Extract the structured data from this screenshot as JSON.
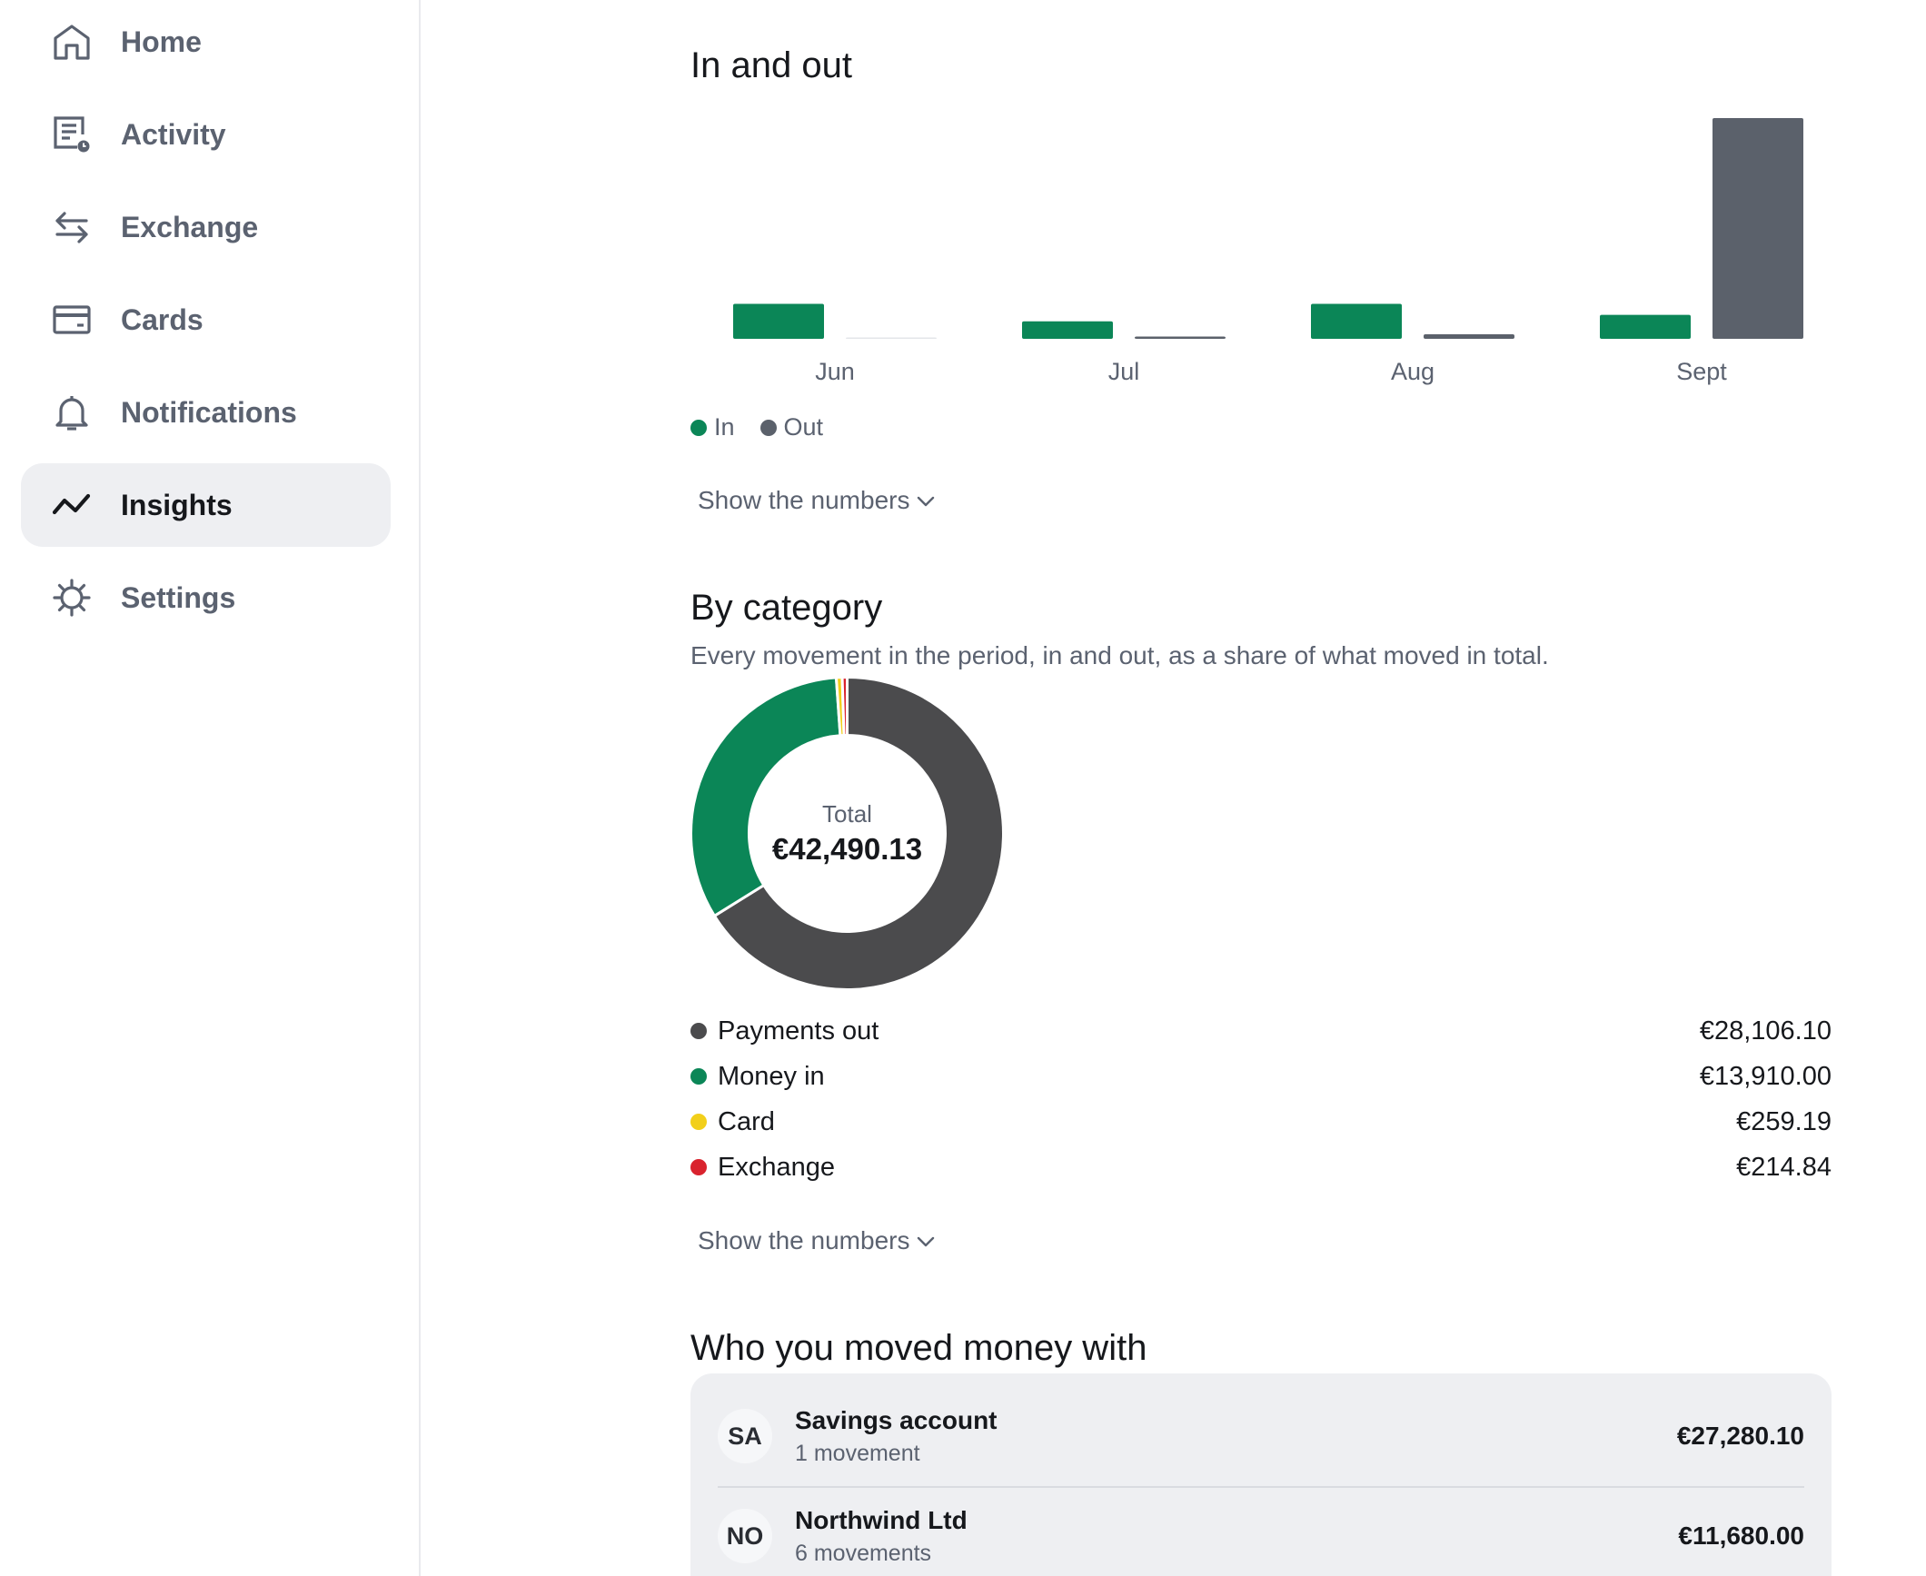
{
  "sidebar": {
    "items": [
      {
        "label": "Home",
        "icon": "home-icon",
        "active": false
      },
      {
        "label": "Activity",
        "icon": "activity-icon",
        "active": false
      },
      {
        "label": "Exchange",
        "icon": "exchange-icon",
        "active": false
      },
      {
        "label": "Cards",
        "icon": "card-icon",
        "active": false
      },
      {
        "label": "Notifications",
        "icon": "bell-icon",
        "active": false
      },
      {
        "label": "Insights",
        "icon": "insights-icon",
        "active": true
      },
      {
        "label": "Settings",
        "icon": "gear-icon",
        "active": false
      }
    ]
  },
  "in_out": {
    "title": "In and out",
    "legend": {
      "in": "In",
      "out": "Out"
    },
    "show_numbers": "Show the numbers"
  },
  "by_category": {
    "title": "By category",
    "subtitle": "Every movement in the period, in and out, as a share of what moved in total.",
    "total_label": "Total",
    "total_value": "€42,490.13",
    "rows": [
      {
        "label": "Payments out",
        "amount": "€28,106.10",
        "color": "#4b4b4d"
      },
      {
        "label": "Money in",
        "amount": "€13,910.00",
        "color": "#0b8657"
      },
      {
        "label": "Card",
        "amount": "€259.19",
        "color": "#f2cf1a"
      },
      {
        "label": "Exchange",
        "amount": "€214.84",
        "color": "#d9232e"
      }
    ],
    "show_numbers": "Show the numbers"
  },
  "counterparties": {
    "title": "Who you moved money with",
    "rows": [
      {
        "initials": "SA",
        "name": "Savings account",
        "sub": "1 movement",
        "amount": "€27,280.10"
      },
      {
        "initials": "NO",
        "name": "Northwind Ltd",
        "sub": "6 movements",
        "amount": "€11,680.00"
      }
    ]
  },
  "colors": {
    "in": "#0b8657",
    "out": "#5b616b",
    "accent_bg": "#eeeff2"
  },
  "chart_data": [
    {
      "type": "bar",
      "title": "In and out",
      "categories": [
        "Jun",
        "Jul",
        "Aug",
        "Sept"
      ],
      "series": [
        {
          "name": "In",
          "values": [
            3800,
            1900,
            3800,
            2600
          ]
        },
        {
          "name": "Out",
          "values": [
            0,
            250,
            500,
            24000
          ]
        }
      ],
      "ylim": [
        0,
        24000
      ],
      "legend": "bottom-left",
      "grid": false
    },
    {
      "type": "pie",
      "title": "By category",
      "labels": [
        "Payments out",
        "Money in",
        "Card",
        "Exchange"
      ],
      "values": [
        28106.1,
        13910.0,
        259.19,
        214.84
      ]
    }
  ]
}
